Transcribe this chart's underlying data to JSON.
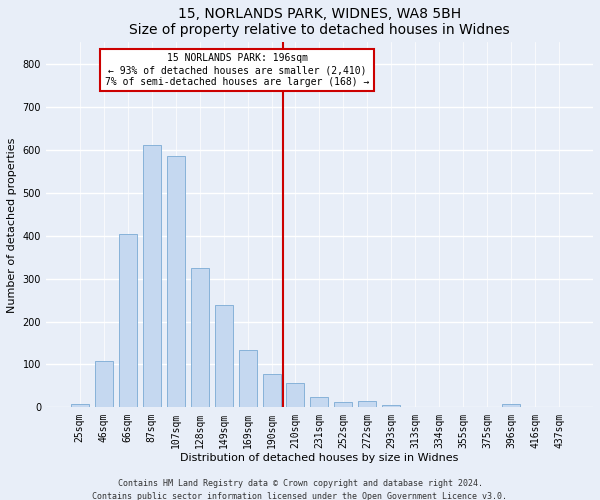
{
  "title1": "15, NORLANDS PARK, WIDNES, WA8 5BH",
  "title2": "Size of property relative to detached houses in Widnes",
  "xlabel": "Distribution of detached houses by size in Widnes",
  "ylabel": "Number of detached properties",
  "footer1": "Contains HM Land Registry data © Crown copyright and database right 2024.",
  "footer2": "Contains public sector information licensed under the Open Government Licence v3.0.",
  "bar_labels": [
    "25sqm",
    "46sqm",
    "66sqm",
    "87sqm",
    "107sqm",
    "128sqm",
    "149sqm",
    "169sqm",
    "190sqm",
    "210sqm",
    "231sqm",
    "252sqm",
    "272sqm",
    "293sqm",
    "313sqm",
    "334sqm",
    "355sqm",
    "375sqm",
    "396sqm",
    "416sqm",
    "437sqm"
  ],
  "bar_values": [
    7,
    107,
    405,
    612,
    585,
    325,
    238,
    133,
    78,
    56,
    25,
    12,
    15,
    5,
    0,
    0,
    0,
    0,
    8,
    0,
    0
  ],
  "bar_color": "#c5d8f0",
  "bar_edgecolor": "#7aaad4",
  "property_line_label": "15 NORLANDS PARK: 196sqm",
  "annotation_line1": "← 93% of detached houses are smaller (2,410)",
  "annotation_line2": "7% of semi-detached houses are larger (168) →",
  "annotation_box_color": "#ffffff",
  "annotation_box_edgecolor": "#cc0000",
  "vline_color": "#cc0000",
  "vline_x_index": 8.5,
  "ylim": [
    0,
    850
  ],
  "yticks": [
    0,
    100,
    200,
    300,
    400,
    500,
    600,
    700,
    800
  ],
  "background_color": "#e8eef8",
  "grid_color": "#ffffff",
  "title_fontsize": 10,
  "xlabel_fontsize": 8,
  "ylabel_fontsize": 8,
  "tick_fontsize": 7,
  "annot_fontsize": 7,
  "footer_fontsize": 6
}
